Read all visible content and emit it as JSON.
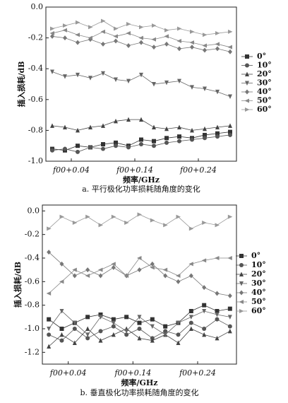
{
  "chart_data": [
    {
      "type": "line",
      "title": "a. 平行极化功率损耗随角度的变化",
      "xlabel": "频率/GHz",
      "ylabel": "插入损耗/dB",
      "x": [
        0.01,
        0.03,
        0.05,
        0.07,
        0.09,
        0.11,
        0.13,
        0.15,
        0.17,
        0.19,
        0.21,
        0.23,
        0.25,
        0.27,
        0.29
      ],
      "xlim": [
        0,
        0.3
      ],
      "xticks": [
        {
          "value": 0.04,
          "label": "f00+0.04"
        },
        {
          "value": 0.14,
          "label": "f00+0.14"
        },
        {
          "value": 0.24,
          "label": "f00+0.24"
        }
      ],
      "ylim": [
        -1.0,
        0.0
      ],
      "yticks": [
        {
          "value": 0,
          "label": "0.0"
        },
        -0.2,
        -0.4,
        -0.6,
        -0.8,
        {
          "value": -1.0,
          "label": "-1.0"
        }
      ],
      "legend": "right",
      "series": [
        {
          "name": "0°",
          "marker": "square",
          "color": "#333333",
          "values": [
            -0.92,
            -0.93,
            -0.9,
            -0.91,
            -0.89,
            -0.88,
            -0.9,
            -0.86,
            -0.87,
            -0.85,
            -0.84,
            -0.85,
            -0.83,
            -0.82,
            -0.81
          ]
        },
        {
          "name": "10°",
          "marker": "circle",
          "color": "#555555",
          "values": [
            -0.93,
            -0.92,
            -0.94,
            -0.91,
            -0.92,
            -0.9,
            -0.91,
            -0.89,
            -0.9,
            -0.88,
            -0.87,
            -0.86,
            -0.85,
            -0.84,
            -0.83
          ]
        },
        {
          "name": "20°",
          "marker": "triangle-up",
          "color": "#444444",
          "values": [
            -0.77,
            -0.78,
            -0.8,
            -0.78,
            -0.77,
            -0.74,
            -0.73,
            -0.73,
            -0.78,
            -0.79,
            -0.78,
            -0.8,
            -0.79,
            -0.78,
            -0.77
          ]
        },
        {
          "name": "30°",
          "marker": "triangle-down",
          "color": "#666666",
          "values": [
            -0.42,
            -0.45,
            -0.44,
            -0.46,
            -0.43,
            -0.47,
            -0.48,
            -0.44,
            -0.5,
            -0.49,
            -0.48,
            -0.52,
            -0.53,
            -0.55,
            -0.58
          ]
        },
        {
          "name": "40°",
          "marker": "diamond",
          "color": "#777777",
          "values": [
            -0.19,
            -0.2,
            -0.23,
            -0.21,
            -0.24,
            -0.22,
            -0.25,
            -0.23,
            -0.26,
            -0.24,
            -0.27,
            -0.26,
            -0.28,
            -0.27,
            -0.29
          ]
        },
        {
          "name": "50°",
          "marker": "triangle-left",
          "color": "#888888",
          "values": [
            -0.17,
            -0.15,
            -0.18,
            -0.2,
            -0.16,
            -0.19,
            -0.17,
            -0.2,
            -0.21,
            -0.19,
            -0.22,
            -0.23,
            -0.25,
            -0.24,
            -0.26
          ]
        },
        {
          "name": "60°",
          "marker": "triangle-right",
          "color": "#999999",
          "values": [
            -0.14,
            -0.12,
            -0.1,
            -0.13,
            -0.09,
            -0.14,
            -0.11,
            -0.13,
            -0.12,
            -0.15,
            -0.14,
            -0.16,
            -0.18,
            -0.17,
            -0.16
          ]
        }
      ]
    },
    {
      "type": "line",
      "title": "b. 垂直极化功率损耗随角度的变化",
      "xlabel": "频率/GHz",
      "ylabel": "插入损耗/dB",
      "x": [
        0.01,
        0.03,
        0.05,
        0.07,
        0.09,
        0.11,
        0.13,
        0.15,
        0.17,
        0.19,
        0.21,
        0.23,
        0.25,
        0.27,
        0.29
      ],
      "xlim": [
        0,
        0.3
      ],
      "xticks": [
        {
          "value": 0.04,
          "label": "f00+0.04"
        },
        {
          "value": 0.14,
          "label": "f00+0.14"
        },
        {
          "value": 0.24,
          "label": "f00+0.24"
        }
      ],
      "ylim": [
        -1.3,
        0.05
      ],
      "yticks": [
        {
          "value": 0,
          "label": "0.0"
        },
        -0.2,
        -0.4,
        -0.6,
        -0.8,
        {
          "value": -1.0,
          "label": "-1.0"
        },
        -1.2
      ],
      "legend": "right",
      "series": [
        {
          "name": "0°",
          "marker": "square",
          "color": "#333333",
          "values": [
            -0.92,
            -1.0,
            -0.95,
            -0.9,
            -0.88,
            -0.92,
            -0.9,
            -0.95,
            -0.92,
            -0.98,
            -0.95,
            -0.85,
            -0.8,
            -0.85,
            -0.83
          ]
        },
        {
          "name": "10°",
          "marker": "circle",
          "color": "#555555",
          "values": [
            -1.05,
            -1.1,
            -1.0,
            -1.08,
            -1.02,
            -0.98,
            -1.05,
            -1.0,
            -1.08,
            -1.02,
            -1.05,
            -0.95,
            -1.0,
            -0.92,
            -0.98
          ]
        },
        {
          "name": "20°",
          "marker": "triangle-up",
          "color": "#444444",
          "values": [
            -1.15,
            -1.05,
            -1.12,
            -1.0,
            -1.1,
            -1.05,
            -1.0,
            -1.08,
            -1.1,
            -1.05,
            -1.12,
            -1.0,
            -1.05,
            -1.08,
            -1.02
          ]
        },
        {
          "name": "30°",
          "marker": "triangle-down",
          "color": "#666666",
          "values": [
            -1.0,
            -0.85,
            -0.95,
            -1.05,
            -0.9,
            -0.95,
            -1.02,
            -0.9,
            -0.98,
            -1.05,
            -0.95,
            -0.9,
            -0.85,
            -0.88,
            -0.9
          ]
        },
        {
          "name": "40°",
          "marker": "diamond",
          "color": "#777777",
          "values": [
            -0.35,
            -0.45,
            -0.55,
            -0.5,
            -0.55,
            -0.48,
            -0.55,
            -0.5,
            -0.45,
            -0.55,
            -0.6,
            -0.55,
            -0.65,
            -0.7,
            -0.72
          ]
        },
        {
          "name": "50°",
          "marker": "triangle-left",
          "color": "#888888",
          "values": [
            -0.7,
            -0.6,
            -0.5,
            -0.55,
            -0.5,
            -0.45,
            -0.55,
            -0.4,
            -0.48,
            -0.5,
            -0.55,
            -0.45,
            -0.42,
            -0.4,
            -0.4
          ]
        },
        {
          "name": "60°",
          "marker": "triangle-right",
          "color": "#999999",
          "values": [
            -0.15,
            -0.05,
            -0.1,
            -0.05,
            -0.12,
            -0.05,
            -0.1,
            -0.03,
            -0.08,
            -0.12,
            -0.05,
            -0.15,
            -0.1,
            -0.12,
            -0.05
          ]
        }
      ]
    }
  ]
}
